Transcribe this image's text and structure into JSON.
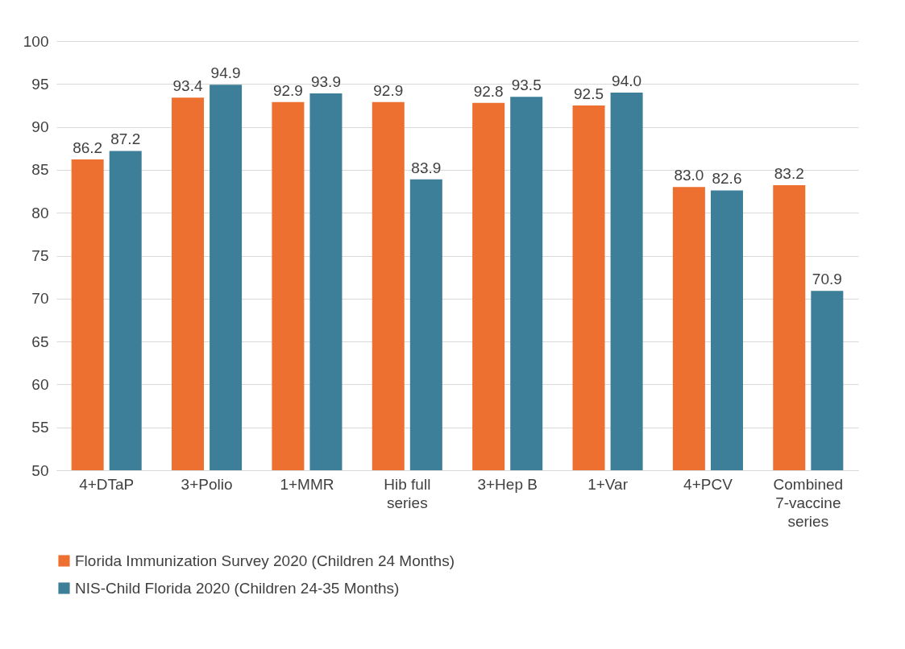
{
  "chart_data": {
    "type": "bar",
    "categories": [
      "4+DTaP",
      "3+Polio",
      "1+MMR",
      "Hib full series",
      "3+Hep B",
      "1+Var",
      "4+PCV",
      "Combined 7-vaccine series"
    ],
    "series": [
      {
        "name": "Florida Immunization Survey 2020 (Children 24 Months)",
        "color": "#ed7031",
        "values": [
          86.2,
          93.4,
          92.9,
          92.9,
          92.8,
          92.5,
          83.0,
          83.2
        ],
        "value_labels": [
          "86.2",
          "93.4",
          "92.9",
          "92.9",
          "92.8",
          "92.5",
          "83.0",
          "83.2"
        ]
      },
      {
        "name": "NIS-Child Florida 2020 (Children 24-35 Months)",
        "color": "#3d7f99",
        "values": [
          87.2,
          94.9,
          93.9,
          83.9,
          93.5,
          94.0,
          82.6,
          70.9
        ],
        "value_labels": [
          "87.2",
          "94.9",
          "93.9",
          "83.9",
          "93.5",
          "94.0",
          "82.6",
          "70.9"
        ]
      }
    ],
    "ylim": [
      50,
      100
    ],
    "yticks": [
      50,
      55,
      60,
      65,
      70,
      75,
      80,
      85,
      90,
      95,
      100
    ],
    "grid": "y",
    "legend": "bottom"
  }
}
